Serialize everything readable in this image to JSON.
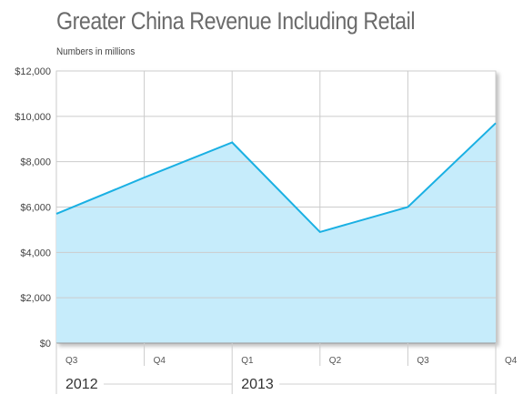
{
  "chart_data": {
    "type": "area",
    "title": "Greater China Revenue Including Retail",
    "subtitle": "Numbers in millions",
    "categories": [
      "Q3",
      "Q4",
      "Q1",
      "Q2",
      "Q3",
      "Q4"
    ],
    "years": [
      {
        "label": "2012",
        "start_index": 0
      },
      {
        "label": "2013",
        "start_index": 2
      }
    ],
    "series": [
      {
        "values": [
          5700,
          7300,
          8850,
          4900,
          6000,
          9700
        ]
      }
    ],
    "ylim": [
      0,
      12000
    ],
    "yticks": [
      "$0",
      "$2,000",
      "$4,000",
      "$6,000",
      "$8,000",
      "$10,000",
      "$12,000"
    ],
    "ytick_values": [
      0,
      2000,
      4000,
      6000,
      8000,
      10000,
      12000
    ],
    "grid": true,
    "colors": {
      "line": "#1ab0e3",
      "fill": "#c6ecfb",
      "grid": "#cccccc",
      "axis": "#999999"
    }
  }
}
